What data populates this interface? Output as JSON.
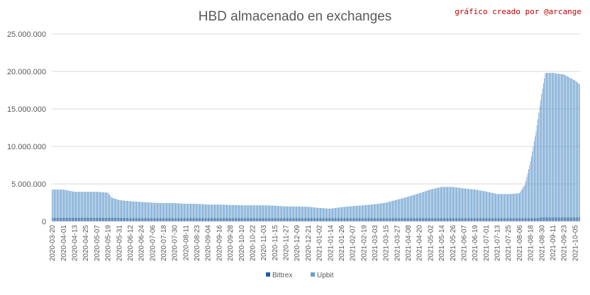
{
  "chart_data": {
    "type": "bar",
    "stacked": true,
    "title": "HBD almacenado en exchanges",
    "annotation": "gráfico creado por @arcange",
    "xlabel": "",
    "ylabel": "",
    "ylim": [
      0,
      25000000
    ],
    "yticks": [
      0,
      5000000,
      10000000,
      15000000,
      20000000,
      25000000
    ],
    "ytick_labels": [
      "0",
      "5.000.000",
      "10.000.000",
      "15.000.000",
      "20.000.000",
      "25.000.000"
    ],
    "grid": true,
    "legend_position": "bottom",
    "x_range": [
      "2020-03-20",
      "2021-10-10"
    ],
    "x_tick_labels": [
      "2020-03-20",
      "2020-04-01",
      "2020-04-13",
      "2020-04-25",
      "2020-05-07",
      "2020-05-19",
      "2020-05-31",
      "2020-06-12",
      "2020-06-24",
      "2020-07-06",
      "2020-07-18",
      "2020-07-30",
      "2020-08-11",
      "2020-08-23",
      "2020-09-04",
      "2020-09-16",
      "2020-09-28",
      "2020-10-10",
      "2020-10-22",
      "2020-11-03",
      "2020-11-15",
      "2020-11-27",
      "2020-12-09",
      "2020-12-21",
      "2021-01-02",
      "2021-01-14",
      "2021-01-26",
      "2021-02-07",
      "2021-02-19",
      "2021-03-03",
      "2021-03-15",
      "2021-03-27",
      "2021-04-08",
      "2021-04-20",
      "2021-05-02",
      "2021-05-14",
      "2021-05-26",
      "2021-06-07",
      "2021-06-19",
      "2021-07-01",
      "2021-07-13",
      "2021-07-25",
      "2021-08-06",
      "2021-08-18",
      "2021-08-30",
      "2021-09-11",
      "2021-09-23",
      "2021-10-05"
    ],
    "x": [
      "2020-03-20",
      "2020-04-01",
      "2020-04-13",
      "2020-04-25",
      "2020-05-07",
      "2020-05-19",
      "2020-05-23",
      "2020-05-31",
      "2020-06-12",
      "2020-06-24",
      "2020-07-06",
      "2020-07-18",
      "2020-07-30",
      "2020-08-11",
      "2020-08-23",
      "2020-09-04",
      "2020-09-16",
      "2020-09-28",
      "2020-10-10",
      "2020-10-22",
      "2020-11-03",
      "2020-11-15",
      "2020-11-27",
      "2020-12-09",
      "2020-12-21",
      "2021-01-02",
      "2021-01-14",
      "2021-01-26",
      "2021-02-07",
      "2021-02-19",
      "2021-03-03",
      "2021-03-15",
      "2021-03-27",
      "2021-04-08",
      "2021-04-20",
      "2021-05-02",
      "2021-05-14",
      "2021-05-26",
      "2021-06-07",
      "2021-06-19",
      "2021-07-01",
      "2021-07-13",
      "2021-07-25",
      "2021-08-06",
      "2021-08-12",
      "2021-08-18",
      "2021-08-24",
      "2021-08-30",
      "2021-09-03",
      "2021-09-07",
      "2021-09-11",
      "2021-09-23",
      "2021-10-05",
      "2021-10-10"
    ],
    "series": [
      {
        "name": "Bittrex",
        "color": "#1f5f9f",
        "values": [
          500000,
          500000,
          500000,
          500000,
          500000,
          500000,
          500000,
          500000,
          450000,
          450000,
          450000,
          450000,
          450000,
          450000,
          450000,
          450000,
          450000,
          450000,
          450000,
          450000,
          450000,
          450000,
          450000,
          450000,
          450000,
          450000,
          450000,
          450000,
          450000,
          450000,
          450000,
          450000,
          450000,
          450000,
          450000,
          450000,
          450000,
          450000,
          450000,
          450000,
          450000,
          450000,
          450000,
          450000,
          450000,
          450000,
          450000,
          550000,
          550000,
          550000,
          550000,
          550000,
          550000,
          550000
        ]
      },
      {
        "name": "Upbit",
        "color": "#6a9fcf",
        "values": [
          3750000,
          3750000,
          3450000,
          3450000,
          3450000,
          3350000,
          2700000,
          2350000,
          2250000,
          2150000,
          2050000,
          2000000,
          2000000,
          1900000,
          1900000,
          1800000,
          1800000,
          1750000,
          1700000,
          1700000,
          1700000,
          1650000,
          1550000,
          1550000,
          1500000,
          1350000,
          1250000,
          1450000,
          1600000,
          1700000,
          1850000,
          2050000,
          2450000,
          2850000,
          3300000,
          3800000,
          4150000,
          4150000,
          3950000,
          3800000,
          3550000,
          3200000,
          3200000,
          3300000,
          4450000,
          7550000,
          11550000,
          16450000,
          19250000,
          19250000,
          19250000,
          19050000,
          18250000,
          17750000
        ]
      }
    ]
  }
}
